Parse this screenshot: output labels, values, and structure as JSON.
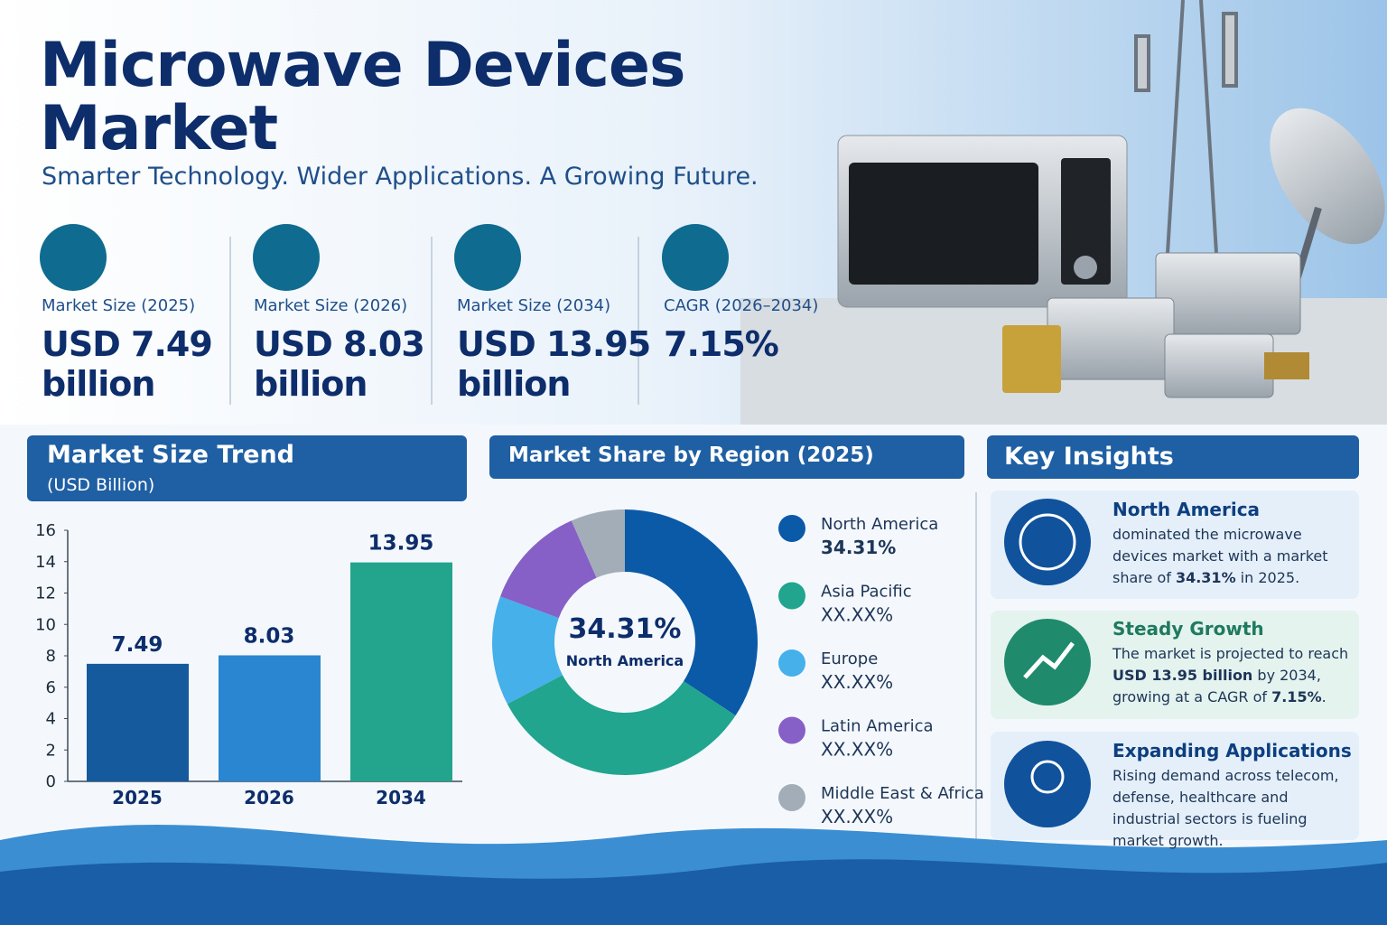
{
  "header": {
    "title": "Microwave Devices Market",
    "subtitle": "Smarter Technology. Wider Applications. A Growing Future."
  },
  "stats": [
    {
      "label": "Market Size (2025)",
      "value": "USD 7.49 billion"
    },
    {
      "label": "Market Size (2026)",
      "value": "USD 8.03 billion"
    },
    {
      "label": "Market Size (2034)",
      "value": "USD 13.95 billion"
    },
    {
      "label": "CAGR (2026–2034)",
      "value": "7.15%"
    }
  ],
  "chart_data": [
    {
      "type": "bar",
      "title": "Market Size Trend",
      "subtitle": "(USD Billion)",
      "categories": [
        "2025",
        "2026",
        "2034"
      ],
      "values": [
        7.49,
        8.03,
        13.95
      ],
      "colors": [
        "#155a9c",
        "#2a86d1",
        "#22a58c"
      ],
      "ylim": [
        0,
        16
      ],
      "yticks": [
        0,
        2,
        4,
        6,
        8,
        10,
        12,
        14,
        16
      ]
    },
    {
      "type": "pie",
      "title": "Market Share by Region (2025)",
      "categories": [
        "North America",
        "Asia Pacific",
        "Europe",
        "Latin America",
        "Middle East & Africa"
      ],
      "values": [
        34.31,
        33,
        13.3,
        12.8,
        6.59
      ],
      "value_labels": [
        "34.31%",
        "XX.XX%",
        "XX.XX%",
        "XX.XX%",
        "XX.XX%"
      ],
      "colors": [
        "#0b5aa8",
        "#21a58e",
        "#45b0ea",
        "#8660c6",
        "#a3adb7"
      ],
      "donut": true
    }
  ],
  "insights": {
    "title": "Key Insights",
    "items": [
      {
        "title": "North America",
        "body": [
          "dominated the microwave devices market with a market share of ",
          "34.31%",
          " in 2025."
        ]
      },
      {
        "title": "Steady Growth",
        "body": [
          "The market is projected to reach ",
          "USD 13.95 billion",
          " by 2034, growing at a CAGR of ",
          "7.15%",
          "."
        ]
      },
      {
        "title": "Expanding Applications",
        "body": [
          "Rising demand across telecom, defense, healthcare and industrial sectors is fueling market growth."
        ]
      }
    ]
  }
}
